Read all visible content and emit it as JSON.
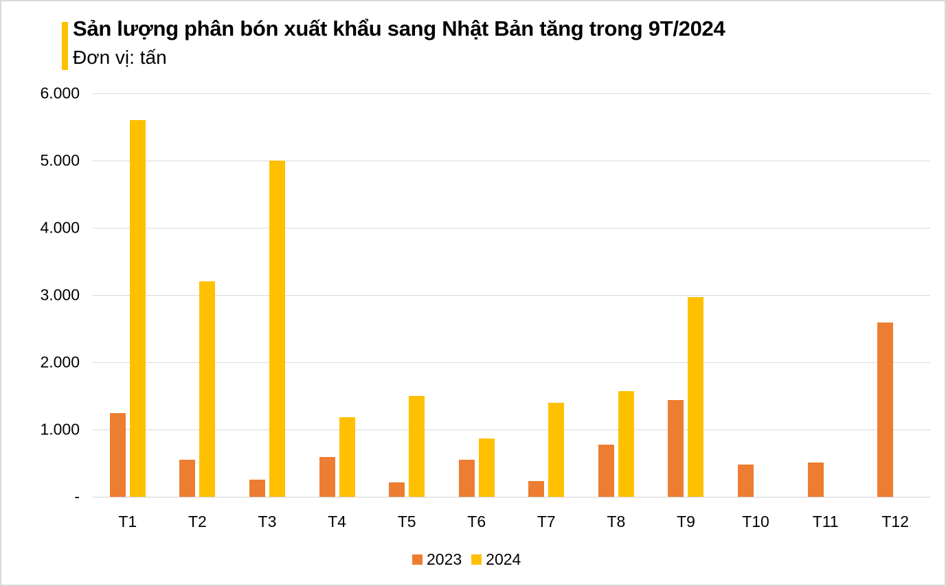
{
  "header": {
    "title": "Sản lượng phân bón xuất khẩu sang Nhật Bản tăng trong 9T/2024",
    "subtitle": "Đơn vị: tấn",
    "accent_color": "#ffc000"
  },
  "chart_data": {
    "type": "bar",
    "title": "Sản lượng phân bón xuất khẩu sang Nhật Bản tăng trong 9T/2024",
    "subtitle": "Đơn vị: tấn",
    "xlabel": "",
    "ylabel": "",
    "categories": [
      "T1",
      "T2",
      "T3",
      "T4",
      "T5",
      "T6",
      "T7",
      "T8",
      "T9",
      "T10",
      "T11",
      "T12"
    ],
    "series": [
      {
        "name": "2023",
        "color": "#ed7d31",
        "values": [
          1245,
          550,
          255,
          590,
          215,
          550,
          235,
          775,
          1440,
          480,
          510,
          2590
        ]
      },
      {
        "name": "2024",
        "color": "#ffc000",
        "values": [
          5600,
          3200,
          5000,
          1180,
          1500,
          865,
          1395,
          1570,
          2970,
          null,
          null,
          null
        ]
      }
    ],
    "ylim": [
      0,
      6000
    ],
    "yticks": [
      {
        "value": 0,
        "label": "-"
      },
      {
        "value": 1000,
        "label": "1.000"
      },
      {
        "value": 2000,
        "label": "2.000"
      },
      {
        "value": 3000,
        "label": "3.000"
      },
      {
        "value": 4000,
        "label": "4.000"
      },
      {
        "value": 5000,
        "label": "5.000"
      },
      {
        "value": 6000,
        "label": "6.000"
      }
    ],
    "grid": true,
    "legend_position": "bottom"
  }
}
